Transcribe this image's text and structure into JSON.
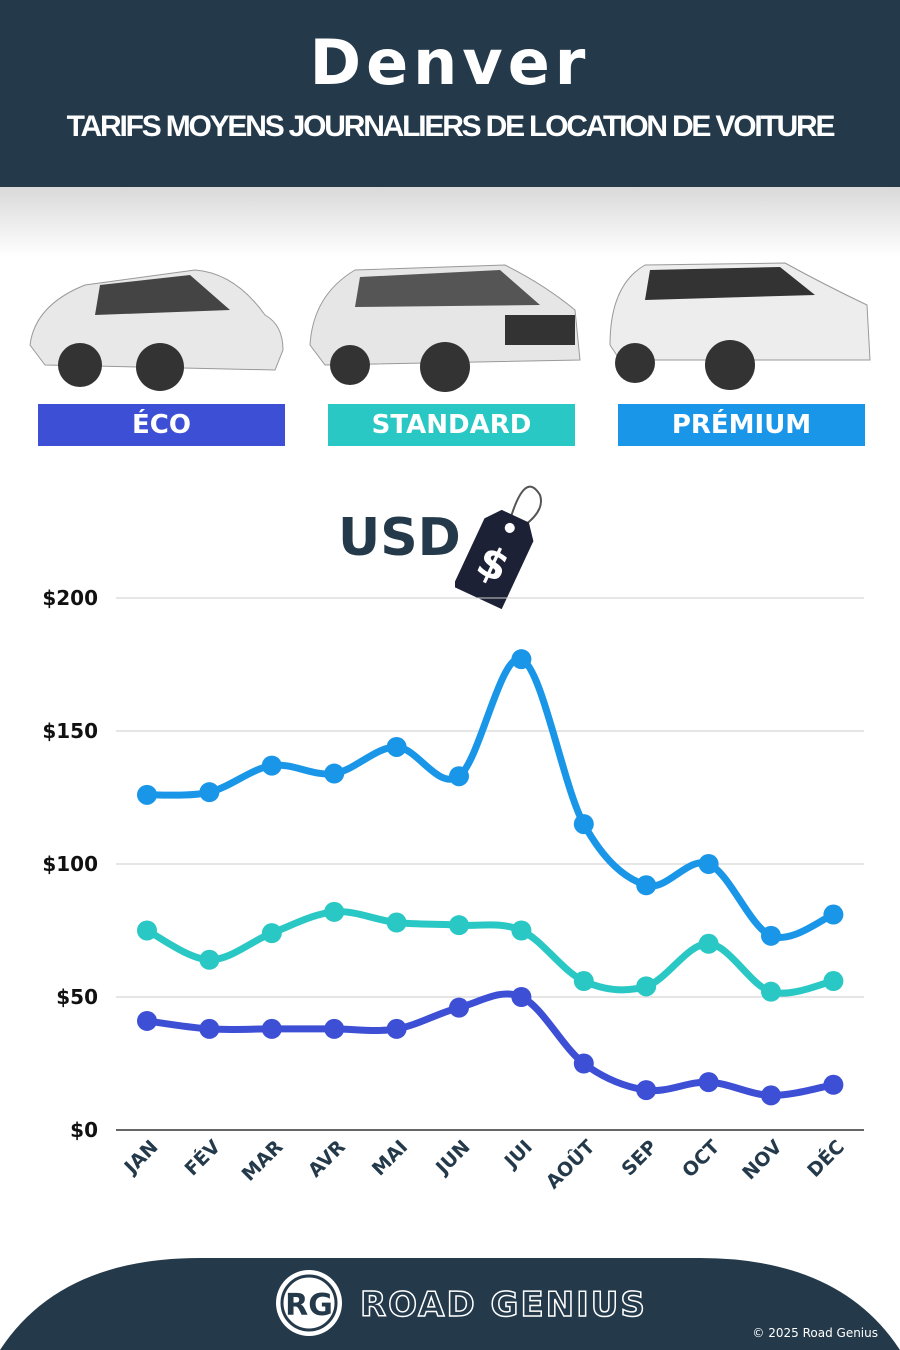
{
  "header": {
    "city": "Denver",
    "subtitle": "TARIFS MOYENS JOURNALIERS DE LOCATION DE VOITURE"
  },
  "categories_labels": {
    "eco": "ÉCO",
    "standard": "STANDARD",
    "premium": "PRÉMIUM"
  },
  "currency_label": "USD",
  "colors": {
    "header": "#243a4b",
    "eco": "#3d4fd4",
    "standard": "#2ac8c4",
    "premium": "#1a96e8"
  },
  "chart_data": {
    "type": "line",
    "categories": [
      "JAN",
      "FÉV",
      "MAR",
      "AVR",
      "MAI",
      "JUN",
      "JUI",
      "AOÛT",
      "SEP",
      "OCT",
      "NOV",
      "DÉC"
    ],
    "series": [
      {
        "name": "PRÉMIUM",
        "values": [
          126,
          127,
          137,
          134,
          144,
          133,
          177,
          115,
          92,
          100,
          73,
          81
        ]
      },
      {
        "name": "STANDARD",
        "values": [
          75,
          64,
          74,
          82,
          78,
          77,
          75,
          56,
          54,
          70,
          52,
          56
        ]
      },
      {
        "name": "ÉCO",
        "values": [
          41,
          38,
          38,
          38,
          38,
          46,
          50,
          25,
          15,
          18,
          13,
          17
        ]
      }
    ],
    "ylim": [
      0,
      200
    ],
    "yticks": [
      "$0",
      "$50",
      "$100",
      "$150",
      "$200"
    ],
    "grid": true
  },
  "footer": {
    "brand": "ROAD GENIUS",
    "logo": "RG",
    "copyright": "© 2025 Road Genius"
  }
}
